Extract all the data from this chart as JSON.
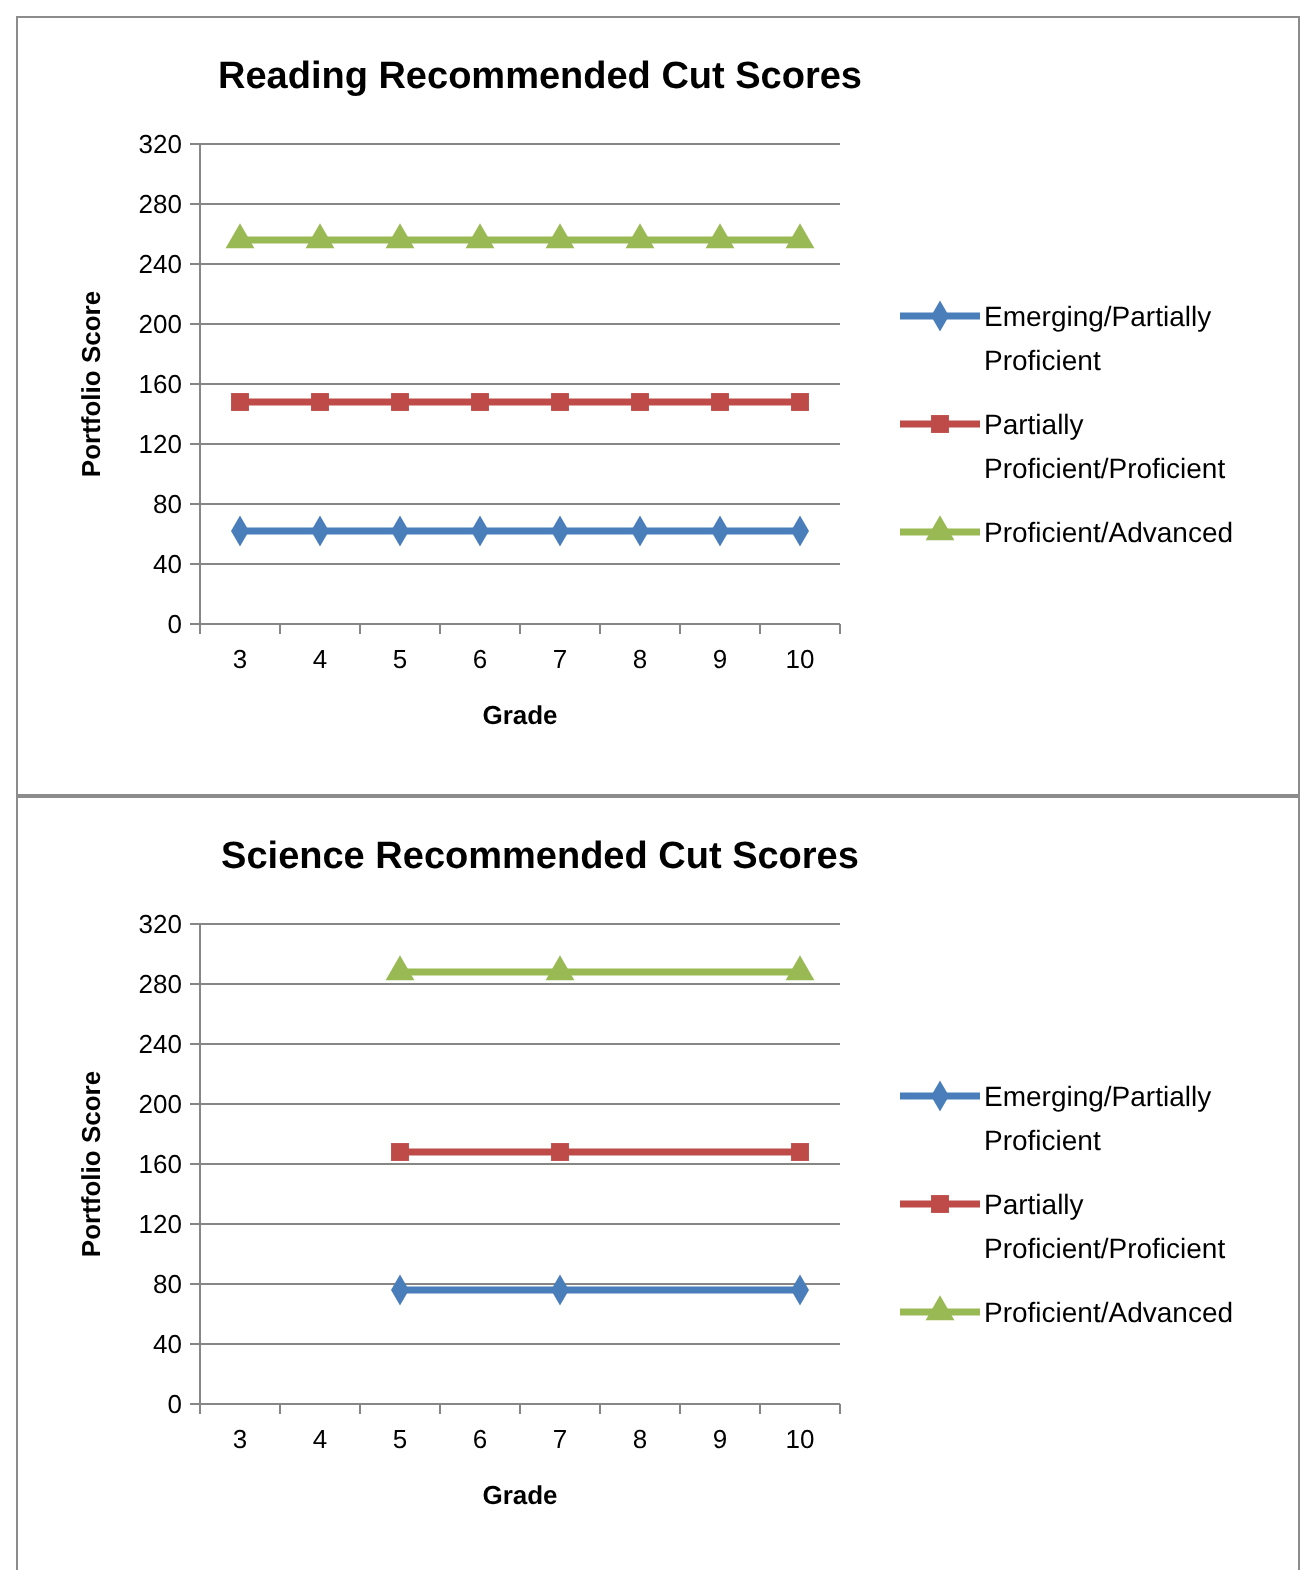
{
  "chart_data": [
    {
      "type": "line",
      "title": "Reading Recommended Cut Scores",
      "xlabel": "Grade",
      "ylabel": "Portfolio Score",
      "categories": [
        "3",
        "4",
        "5",
        "6",
        "7",
        "8",
        "9",
        "10"
      ],
      "ylim": [
        0,
        320
      ],
      "yticks": [
        0,
        40,
        80,
        120,
        160,
        200,
        240,
        280,
        320
      ],
      "grid": "y",
      "legend": "right",
      "series": [
        {
          "name": "Emerging/Partially Proficient",
          "color": "#4a7ebb",
          "marker": "diamond",
          "values": [
            62,
            62,
            62,
            62,
            62,
            62,
            62,
            62
          ]
        },
        {
          "name": "Partially Proficient/Proficient",
          "color": "#be4b48",
          "marker": "square",
          "values": [
            148,
            148,
            148,
            148,
            148,
            148,
            148,
            148
          ]
        },
        {
          "name": "Proficient/Advanced",
          "color": "#98b954",
          "marker": "triangle",
          "values": [
            256,
            256,
            256,
            256,
            256,
            256,
            256,
            256
          ]
        }
      ]
    },
    {
      "type": "line",
      "title": "Science Recommended Cut Scores",
      "xlabel": "Grade",
      "ylabel": "Portfolio Score",
      "categories": [
        "3",
        "4",
        "5",
        "6",
        "7",
        "8",
        "9",
        "10"
      ],
      "ylim": [
        0,
        320
      ],
      "yticks": [
        0,
        40,
        80,
        120,
        160,
        200,
        240,
        280,
        320
      ],
      "grid": "y",
      "legend": "right",
      "series": [
        {
          "name": "Emerging/Partially Proficient",
          "color": "#4a7ebb",
          "marker": "diamond",
          "x": [
            "5",
            "7",
            "10"
          ],
          "values": [
            76,
            76,
            76
          ]
        },
        {
          "name": "Partially Proficient/Proficient",
          "color": "#be4b48",
          "marker": "square",
          "x": [
            "5",
            "7",
            "10"
          ],
          "values": [
            168,
            168,
            168
          ]
        },
        {
          "name": "Proficient/Advanced",
          "color": "#98b954",
          "marker": "triangle",
          "x": [
            "5",
            "7",
            "10"
          ],
          "values": [
            288,
            288,
            288
          ]
        }
      ]
    }
  ]
}
